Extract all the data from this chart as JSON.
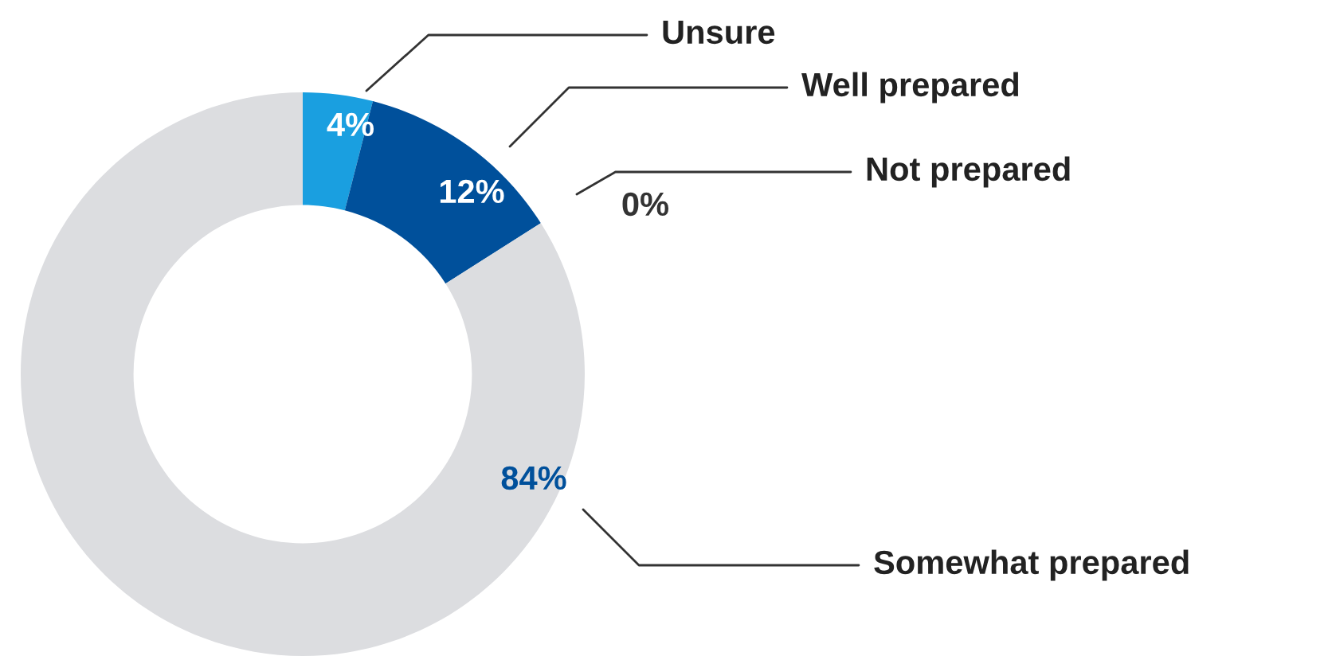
{
  "chart_data": {
    "type": "donut",
    "categories": [
      "Unsure",
      "Well prepared",
      "Not prepared",
      "Somewhat prepared"
    ],
    "values": [
      4,
      12,
      0,
      84
    ],
    "colors": [
      "#1a9fe0",
      "#00509b",
      "#1e4f8c",
      "#dcdde0"
    ],
    "value_labels": [
      "4%",
      "12%",
      "0%",
      "84%"
    ]
  }
}
